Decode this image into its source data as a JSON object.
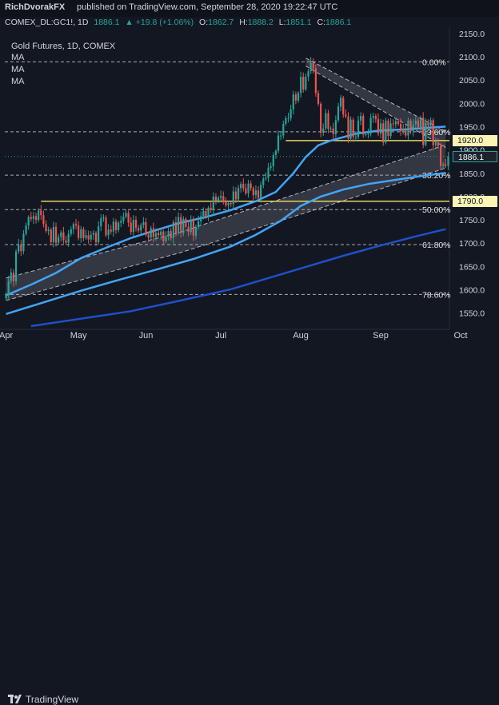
{
  "header": {
    "author": "RichDvorakFX",
    "published": "published on TradingView.com, September 28, 2020 19:22:47 UTC"
  },
  "ticker": {
    "symbol": "COMEX_DL:GC1!, 1D",
    "last": "1886.1",
    "change": "▲ +19.8 (+1.06%)",
    "o_label": "O:",
    "o": "1862.7",
    "h_label": "H:",
    "h": "1888.2",
    "l_label": "L:",
    "l": "1851.1",
    "c_label": "C:",
    "c": "1886.1"
  },
  "legend": {
    "title": "Gold Futures, 1D, COMEX",
    "ma1": "MA",
    "ma2": "MA",
    "ma3": "MA"
  },
  "footer": {
    "brand": "TradingView"
  },
  "colors": {
    "bg": "#131722",
    "up": "#26a69a",
    "down": "#ef5350",
    "ma_light": "#42a5f5",
    "ma_dark": "#1e50c8",
    "level": "#e5d560",
    "fib": "#cfcfcf"
  },
  "chart_data": {
    "type": "candlestick",
    "title": "Gold Futures, 1D, COMEX",
    "x_labels": [
      "Apr",
      "May",
      "Jun",
      "Jul",
      "Aug",
      "Sep",
      "Oct"
    ],
    "x_label_idx": [
      0,
      29,
      56,
      86,
      118,
      150,
      182
    ],
    "ylim": [
      1522,
      2160
    ],
    "y_ticks": [
      1550,
      1600,
      1650,
      1700,
      1750,
      1800,
      1850,
      1900,
      1950,
      2000,
      2050,
      2100,
      2150
    ],
    "price_labels": [
      {
        "value": 1920.0,
        "text": "1920.0",
        "style": "level"
      },
      {
        "value": 1886.1,
        "text": "1886.1",
        "style": "last"
      },
      {
        "value": 1790.0,
        "text": "1790.0",
        "style": "level"
      }
    ],
    "fib_levels": [
      {
        "label": "0.00%",
        "value": 2089
      },
      {
        "label": "23.60%",
        "value": 1939
      },
      {
        "label": "38.20%",
        "value": 1846
      },
      {
        "label": "50.00%",
        "value": 1772
      },
      {
        "label": "61.80%",
        "value": 1697
      },
      {
        "label": "78.60%",
        "value": 1590
      }
    ],
    "closes": [
      1590,
      1619,
      1637,
      1618,
      1682,
      1697,
      1683,
      1720,
      1738,
      1756,
      1752,
      1758,
      1750,
      1770,
      1760,
      1741,
      1726,
      1729,
      1702,
      1735,
      1701,
      1713,
      1723,
      1706,
      1701,
      1720,
      1730,
      1741,
      1738,
      1711,
      1730,
      1711,
      1717,
      1708,
      1718,
      1722,
      1702,
      1736,
      1753,
      1755,
      1717,
      1729,
      1725,
      1746,
      1728,
      1744,
      1748,
      1757,
      1765,
      1744,
      1724,
      1750,
      1733,
      1727,
      1739,
      1745,
      1718,
      1712,
      1732,
      1713,
      1722,
      1717,
      1725,
      1704,
      1715,
      1726,
      1711,
      1745,
      1722,
      1756,
      1722,
      1752,
      1735,
      1724,
      1751,
      1716,
      1735,
      1747,
      1758,
      1769,
      1756,
      1776,
      1771,
      1800,
      1791,
      1797,
      1801,
      1790,
      1781,
      1786,
      1784,
      1811,
      1794,
      1818,
      1827,
      1818,
      1807,
      1828,
      1818,
      1803,
      1813,
      1797,
      1825,
      1838,
      1840,
      1862,
      1865,
      1889,
      1898,
      1931,
      1931,
      1956,
      1968,
      1968,
      1987,
      2019,
      2006,
      2022,
      2057,
      2030,
      2057,
      2069,
      2087,
      2075,
      2022,
      1999,
      1937,
      1946,
      1979,
      1945,
      1946,
      1934,
      1964,
      1993,
      2012,
      1976,
      1972,
      1924,
      1965,
      1928,
      1928,
      1963,
      1973,
      1933,
      1934,
      1935,
      1969,
      1973,
      1966,
      1935,
      1957,
      1916,
      1963,
      1930,
      1957,
      1955,
      1962,
      1956,
      1940,
      1946,
      1931,
      1963,
      1940,
      1955,
      1963,
      1949,
      1969,
      1911,
      1958,
      1954,
      1964,
      1910,
      1916,
      1908,
      1866,
      1869,
      1866,
      1886
    ],
    "ma_fast": [
      [
        0,
        1588
      ],
      [
        10,
        1611
      ],
      [
        20,
        1636
      ],
      [
        30,
        1668
      ],
      [
        40,
        1690
      ],
      [
        50,
        1711
      ],
      [
        60,
        1728
      ],
      [
        70,
        1744
      ],
      [
        80,
        1756
      ],
      [
        90,
        1771
      ],
      [
        100,
        1790
      ],
      [
        108,
        1810
      ],
      [
        115,
        1850
      ],
      [
        120,
        1885
      ],
      [
        125,
        1910
      ],
      [
        130,
        1920
      ],
      [
        140,
        1935
      ],
      [
        150,
        1942
      ],
      [
        160,
        1944
      ],
      [
        170,
        1948
      ],
      [
        176,
        1950
      ]
    ],
    "ma_mid": [
      [
        0,
        1548
      ],
      [
        15,
        1573
      ],
      [
        30,
        1598
      ],
      [
        45,
        1621
      ],
      [
        60,
        1643
      ],
      [
        75,
        1666
      ],
      [
        90,
        1693
      ],
      [
        100,
        1718
      ],
      [
        110,
        1748
      ],
      [
        118,
        1780
      ],
      [
        126,
        1800
      ],
      [
        135,
        1815
      ],
      [
        145,
        1827
      ],
      [
        155,
        1835
      ],
      [
        165,
        1843
      ],
      [
        176,
        1851
      ]
    ],
    "ma_slow": [
      [
        10,
        1522
      ],
      [
        30,
        1538
      ],
      [
        50,
        1554
      ],
      [
        70,
        1577
      ],
      [
        90,
        1601
      ],
      [
        105,
        1625
      ],
      [
        120,
        1649
      ],
      [
        135,
        1673
      ],
      [
        150,
        1695
      ],
      [
        165,
        1716
      ],
      [
        176,
        1730
      ]
    ],
    "channel_top": [
      [
        0,
        1625
      ],
      [
        70,
        1724
      ],
      [
        176,
        1911
      ]
    ],
    "channel_bottom": [
      [
        0,
        1577
      ],
      [
        70,
        1680
      ],
      [
        176,
        1861
      ]
    ],
    "wedge_top": [
      [
        120,
        2097
      ],
      [
        176,
        1940
      ]
    ],
    "wedge_bottom": [
      [
        120,
        2080
      ],
      [
        176,
        1905
      ]
    ]
  }
}
